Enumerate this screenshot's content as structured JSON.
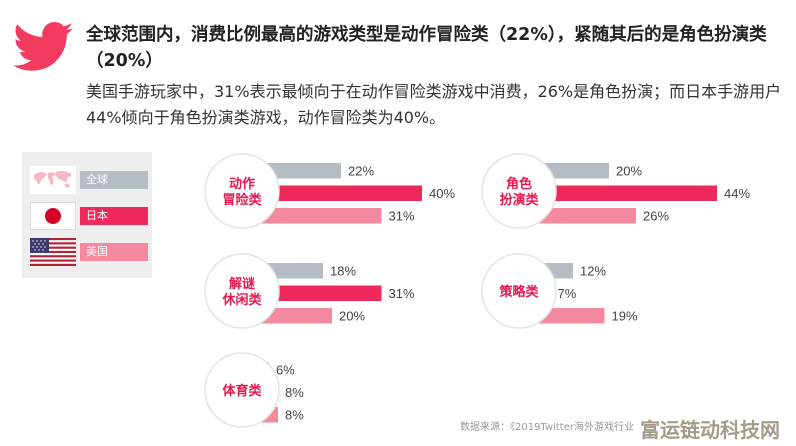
{
  "title": "全球范围内，消费比例最高的游戏类型是动作冒险类（22%），紧随其后的是角色扮演类（20%）",
  "subtitle": "美国手游玩家中，31%表示最倾向于在动作冒险类游戏中消费，26%是角色扮演；而日本手游用户44%倾向于角色扮演类游戏，动作冒险类为40%。",
  "legend": [
    {
      "label": "全球",
      "color": "#b5bcc3",
      "flag": "world-map-flag"
    },
    {
      "label": "日本",
      "color": "#ee2a5c",
      "flag": "japan-flag"
    },
    {
      "label": "美国",
      "color": "#f3889e",
      "flag": "usa-flag"
    }
  ],
  "colors": {
    "global": "#b5bcc3",
    "japan": "#ee2a5c",
    "usa": "#f3889e",
    "bird": "#f23b5f",
    "category_text": "#e8174f"
  },
  "chart_data": {
    "type": "bar",
    "series_names": [
      "全球",
      "日本",
      "美国"
    ],
    "groups": [
      {
        "category": "动作冒险类",
        "lines": [
          "动作",
          "冒险类"
        ],
        "values": [
          22,
          40,
          31
        ],
        "labels": [
          "22%",
          "40%",
          "31%"
        ]
      },
      {
        "category": "角色扮演类",
        "lines": [
          "角色",
          "扮演类"
        ],
        "values": [
          20,
          44,
          26
        ],
        "labels": [
          "20%",
          "44%",
          "26%"
        ]
      },
      {
        "category": "解谜休闲类",
        "lines": [
          "解谜",
          "休闲类"
        ],
        "values": [
          18,
          31,
          20
        ],
        "labels": [
          "18%",
          "31%",
          "20%"
        ]
      },
      {
        "category": "策略类",
        "lines": [
          "策略类"
        ],
        "values": [
          12,
          7,
          19
        ],
        "labels": [
          "12%",
          "7%",
          "19%"
        ]
      },
      {
        "category": "体育类",
        "lines": [
          "体育类"
        ],
        "values": [
          6,
          8,
          8
        ],
        "labels": [
          "6%",
          "8%",
          "8%"
        ]
      }
    ]
  },
  "source": "数据来源：《2019Twitter海外游戏行业",
  "watermark": "富运链动科技网"
}
